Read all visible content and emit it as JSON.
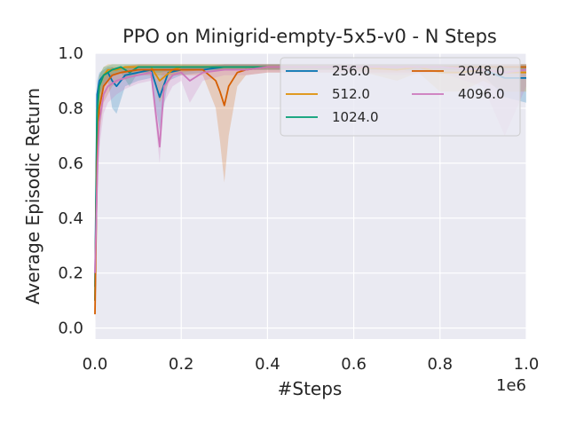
{
  "chart_data": {
    "type": "line",
    "title": "PPO on Minigrid-empty-5x5-v0 - N Steps",
    "xlabel": "#Steps",
    "ylabel": "Average Episodic Return",
    "x_offset_label": "1e6",
    "xlim": [
      0,
      1.0
    ],
    "ylim": [
      -0.04,
      1.0
    ],
    "xticks": [
      0.0,
      0.2,
      0.4,
      0.6,
      0.8,
      1.0
    ],
    "xtick_labels": [
      "0.0",
      "0.2",
      "0.4",
      "0.6",
      "0.8",
      "1.0"
    ],
    "yticks": [
      0.0,
      0.2,
      0.4,
      0.6,
      0.8,
      1.0
    ],
    "ytick_labels": [
      "0.0",
      "0.2",
      "0.4",
      "0.6",
      "0.8",
      "1.0"
    ],
    "grid": true,
    "legend_position": "top-right",
    "series": [
      {
        "name": "256.0",
        "color": "#0173b2",
        "x": [
          0,
          0.005,
          0.01,
          0.02,
          0.03,
          0.04,
          0.05,
          0.07,
          0.1,
          0.13,
          0.15,
          0.17,
          0.2,
          0.25,
          0.3,
          0.35,
          0.4,
          0.45,
          0.5,
          0.6,
          0.7,
          0.8,
          0.9,
          0.95,
          1.0
        ],
        "values": [
          0.15,
          0.85,
          0.9,
          0.92,
          0.93,
          0.9,
          0.88,
          0.92,
          0.93,
          0.94,
          0.84,
          0.93,
          0.94,
          0.94,
          0.95,
          0.95,
          0.95,
          0.95,
          0.95,
          0.95,
          0.95,
          0.95,
          0.94,
          0.91,
          0.91
        ],
        "lower": [
          0.1,
          0.75,
          0.85,
          0.88,
          0.9,
          0.8,
          0.78,
          0.88,
          0.9,
          0.91,
          0.72,
          0.9,
          0.92,
          0.93,
          0.94,
          0.94,
          0.94,
          0.94,
          0.94,
          0.94,
          0.94,
          0.93,
          0.92,
          0.84,
          0.82
        ],
        "upper": [
          0.2,
          0.9,
          0.93,
          0.94,
          0.95,
          0.95,
          0.94,
          0.95,
          0.95,
          0.95,
          0.95,
          0.95,
          0.95,
          0.95,
          0.96,
          0.96,
          0.96,
          0.96,
          0.96,
          0.96,
          0.96,
          0.96,
          0.96,
          0.95,
          0.95
        ]
      },
      {
        "name": "512.0",
        "color": "#de8f05",
        "x": [
          0,
          0.005,
          0.01,
          0.02,
          0.03,
          0.05,
          0.07,
          0.1,
          0.13,
          0.15,
          0.18,
          0.2,
          0.25,
          0.3,
          0.35,
          0.4,
          0.5,
          0.6,
          0.7,
          0.75,
          0.8,
          0.85,
          0.9,
          0.95,
          1.0
        ],
        "values": [
          0.1,
          0.75,
          0.88,
          0.92,
          0.94,
          0.94,
          0.95,
          0.95,
          0.95,
          0.9,
          0.94,
          0.95,
          0.95,
          0.95,
          0.95,
          0.95,
          0.95,
          0.95,
          0.94,
          0.95,
          0.93,
          0.93,
          0.94,
          0.93,
          0.93
        ],
        "lower": [
          0.05,
          0.6,
          0.8,
          0.88,
          0.91,
          0.92,
          0.93,
          0.93,
          0.93,
          0.82,
          0.92,
          0.93,
          0.94,
          0.94,
          0.94,
          0.94,
          0.94,
          0.94,
          0.9,
          0.93,
          0.86,
          0.86,
          0.9,
          0.86,
          0.86
        ],
        "upper": [
          0.15,
          0.85,
          0.92,
          0.95,
          0.96,
          0.96,
          0.96,
          0.96,
          0.96,
          0.96,
          0.96,
          0.96,
          0.96,
          0.96,
          0.96,
          0.96,
          0.96,
          0.96,
          0.96,
          0.96,
          0.96,
          0.96,
          0.96,
          0.96,
          0.96
        ]
      },
      {
        "name": "1024.0",
        "color": "#029e73",
        "x": [
          0,
          0.005,
          0.01,
          0.02,
          0.04,
          0.06,
          0.08,
          0.1,
          0.12,
          0.15,
          0.2,
          0.25,
          0.3,
          0.4,
          0.5,
          0.6,
          0.7,
          0.8,
          0.9,
          1.0
        ],
        "values": [
          0.1,
          0.78,
          0.88,
          0.92,
          0.94,
          0.95,
          0.93,
          0.95,
          0.95,
          0.95,
          0.95,
          0.95,
          0.95,
          0.95,
          0.95,
          0.95,
          0.95,
          0.95,
          0.95,
          0.95
        ],
        "lower": [
          0.05,
          0.65,
          0.8,
          0.88,
          0.92,
          0.93,
          0.88,
          0.93,
          0.93,
          0.93,
          0.94,
          0.94,
          0.94,
          0.94,
          0.94,
          0.94,
          0.94,
          0.94,
          0.94,
          0.94
        ],
        "upper": [
          0.15,
          0.85,
          0.92,
          0.95,
          0.96,
          0.96,
          0.96,
          0.96,
          0.96,
          0.96,
          0.96,
          0.96,
          0.96,
          0.96,
          0.96,
          0.96,
          0.96,
          0.96,
          0.96,
          0.96
        ]
      },
      {
        "name": "2048.0",
        "color": "#d55e00",
        "x": [
          0,
          0.005,
          0.01,
          0.02,
          0.04,
          0.06,
          0.1,
          0.15,
          0.2,
          0.25,
          0.28,
          0.29,
          0.3,
          0.31,
          0.33,
          0.35,
          0.4,
          0.45,
          0.5,
          0.6,
          0.7,
          0.8,
          0.9,
          1.0
        ],
        "values": [
          0.05,
          0.6,
          0.8,
          0.88,
          0.92,
          0.93,
          0.94,
          0.94,
          0.94,
          0.94,
          0.9,
          0.86,
          0.81,
          0.88,
          0.93,
          0.94,
          0.95,
          0.95,
          0.95,
          0.95,
          0.95,
          0.95,
          0.95,
          0.95
        ],
        "lower": [
          0.02,
          0.45,
          0.7,
          0.82,
          0.88,
          0.9,
          0.92,
          0.92,
          0.92,
          0.92,
          0.8,
          0.68,
          0.53,
          0.7,
          0.88,
          0.92,
          0.93,
          0.93,
          0.93,
          0.93,
          0.93,
          0.93,
          0.93,
          0.93
        ],
        "upper": [
          0.08,
          0.75,
          0.88,
          0.92,
          0.95,
          0.95,
          0.96,
          0.96,
          0.96,
          0.96,
          0.96,
          0.96,
          0.96,
          0.96,
          0.96,
          0.96,
          0.96,
          0.96,
          0.96,
          0.96,
          0.96,
          0.96,
          0.96,
          0.96
        ]
      },
      {
        "name": "4096.0",
        "color": "#cc78bc",
        "x": [
          0,
          0.003,
          0.006,
          0.01,
          0.02,
          0.03,
          0.05,
          0.07,
          0.1,
          0.13,
          0.15,
          0.16,
          0.18,
          0.2,
          0.22,
          0.25,
          0.3,
          0.35,
          0.4,
          0.45,
          0.5,
          0.6,
          0.7,
          0.8,
          0.9,
          0.95,
          1.0
        ],
        "values": [
          0.2,
          0.4,
          0.6,
          0.75,
          0.85,
          0.88,
          0.9,
          0.91,
          0.92,
          0.93,
          0.66,
          0.88,
          0.92,
          0.93,
          0.9,
          0.93,
          0.94,
          0.94,
          0.95,
          0.95,
          0.95,
          0.95,
          0.95,
          0.95,
          0.94,
          0.93,
          0.94
        ],
        "lower": [
          0.15,
          0.3,
          0.5,
          0.65,
          0.78,
          0.82,
          0.85,
          0.87,
          0.89,
          0.9,
          0.6,
          0.82,
          0.88,
          0.9,
          0.82,
          0.9,
          0.92,
          0.92,
          0.93,
          0.93,
          0.93,
          0.93,
          0.92,
          0.93,
          0.88,
          0.7,
          0.88
        ],
        "upper": [
          0.25,
          0.5,
          0.7,
          0.82,
          0.9,
          0.92,
          0.93,
          0.94,
          0.95,
          0.95,
          0.9,
          0.95,
          0.95,
          0.95,
          0.95,
          0.95,
          0.96,
          0.96,
          0.96,
          0.96,
          0.96,
          0.96,
          0.96,
          0.96,
          0.96,
          0.96,
          0.96
        ]
      }
    ]
  }
}
